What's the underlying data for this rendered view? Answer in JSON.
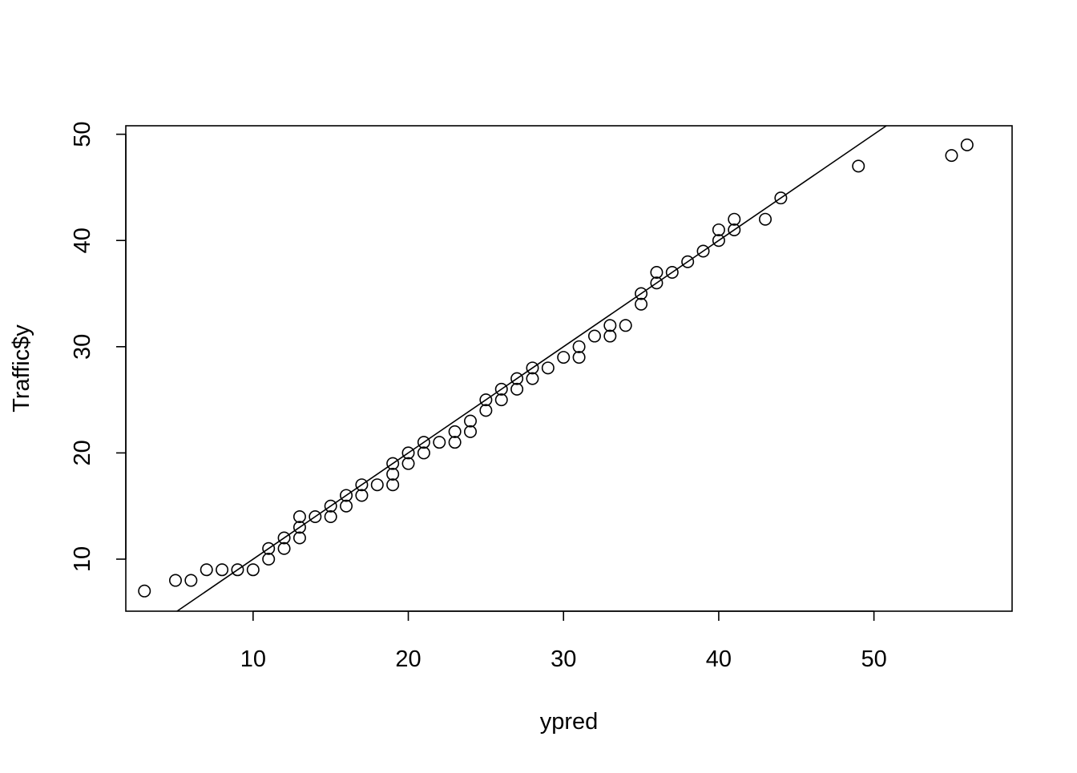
{
  "chart_data": {
    "type": "scatter",
    "title": "",
    "xlabel": "ypred",
    "ylabel": "Traffic$y",
    "xlim": [
      1.8,
      58.9
    ],
    "ylim": [
      5.1,
      50.8
    ],
    "xticks": [
      10,
      20,
      30,
      40,
      50
    ],
    "yticks": [
      10,
      20,
      30,
      40,
      50
    ],
    "grid": false,
    "legend": "none",
    "marker": "open-circle",
    "reference_line": {
      "slope": 1,
      "intercept": 0
    },
    "series": [
      {
        "points": [
          {
            "x": 3,
            "y": 7
          },
          {
            "x": 5,
            "y": 8
          },
          {
            "x": 6,
            "y": 8
          },
          {
            "x": 7,
            "y": 9
          },
          {
            "x": 8,
            "y": 9
          },
          {
            "x": 9,
            "y": 9
          },
          {
            "x": 10,
            "y": 9
          },
          {
            "x": 11,
            "y": 10
          },
          {
            "x": 11,
            "y": 11
          },
          {
            "x": 12,
            "y": 11
          },
          {
            "x": 12,
            "y": 12
          },
          {
            "x": 13,
            "y": 12
          },
          {
            "x": 13,
            "y": 13
          },
          {
            "x": 13,
            "y": 14
          },
          {
            "x": 14,
            "y": 14
          },
          {
            "x": 15,
            "y": 14
          },
          {
            "x": 15,
            "y": 15
          },
          {
            "x": 16,
            "y": 15
          },
          {
            "x": 16,
            "y": 16
          },
          {
            "x": 17,
            "y": 16
          },
          {
            "x": 17,
            "y": 17
          },
          {
            "x": 18,
            "y": 17
          },
          {
            "x": 19,
            "y": 17
          },
          {
            "x": 19,
            "y": 18
          },
          {
            "x": 19,
            "y": 19
          },
          {
            "x": 20,
            "y": 19
          },
          {
            "x": 20,
            "y": 20
          },
          {
            "x": 21,
            "y": 20
          },
          {
            "x": 21,
            "y": 21
          },
          {
            "x": 22,
            "y": 21
          },
          {
            "x": 23,
            "y": 21
          },
          {
            "x": 23,
            "y": 22
          },
          {
            "x": 24,
            "y": 22
          },
          {
            "x": 24,
            "y": 23
          },
          {
            "x": 25,
            "y": 24
          },
          {
            "x": 25,
            "y": 25
          },
          {
            "x": 26,
            "y": 25
          },
          {
            "x": 26,
            "y": 26
          },
          {
            "x": 27,
            "y": 26
          },
          {
            "x": 27,
            "y": 27
          },
          {
            "x": 28,
            "y": 27
          },
          {
            "x": 28,
            "y": 28
          },
          {
            "x": 29,
            "y": 28
          },
          {
            "x": 30,
            "y": 29
          },
          {
            "x": 31,
            "y": 29
          },
          {
            "x": 31,
            "y": 30
          },
          {
            "x": 32,
            "y": 31
          },
          {
            "x": 33,
            "y": 31
          },
          {
            "x": 33,
            "y": 32
          },
          {
            "x": 34,
            "y": 32
          },
          {
            "x": 35,
            "y": 34
          },
          {
            "x": 35,
            "y": 35
          },
          {
            "x": 36,
            "y": 36
          },
          {
            "x": 36,
            "y": 37
          },
          {
            "x": 37,
            "y": 37
          },
          {
            "x": 38,
            "y": 38
          },
          {
            "x": 39,
            "y": 39
          },
          {
            "x": 40,
            "y": 40
          },
          {
            "x": 40,
            "y": 41
          },
          {
            "x": 41,
            "y": 41
          },
          {
            "x": 41,
            "y": 42
          },
          {
            "x": 43,
            "y": 42
          },
          {
            "x": 44,
            "y": 44
          },
          {
            "x": 49,
            "y": 47
          },
          {
            "x": 55,
            "y": 48
          },
          {
            "x": 56,
            "y": 49
          }
        ]
      }
    ]
  }
}
